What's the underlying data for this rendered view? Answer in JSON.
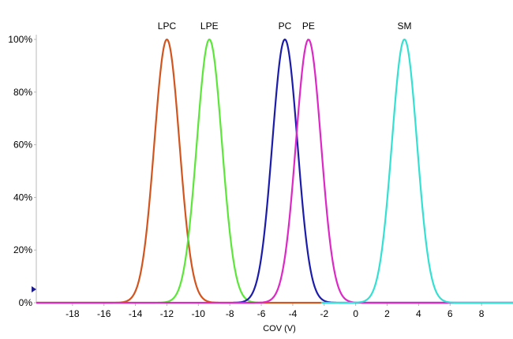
{
  "chart_data": {
    "type": "line",
    "title": "",
    "xlabel": "COV (V)",
    "ylabel": "",
    "xlim": [
      -20.3,
      10
    ],
    "ylim": [
      0,
      100
    ],
    "x_ticks": [
      -18,
      -16,
      -14,
      -12,
      -10,
      -8,
      -6,
      -4,
      -2,
      0,
      2,
      4,
      6,
      8
    ],
    "y_ticks": [
      0,
      20,
      40,
      60,
      80,
      100
    ],
    "y_tick_labels": [
      "0%",
      "20%",
      "40%",
      "60%",
      "80%",
      "100%"
    ],
    "grid": false,
    "legend": "none",
    "series": [
      {
        "name": "LPC",
        "type": "gaussian",
        "center": -12.0,
        "sigma": 0.8,
        "peak": 100,
        "x_range": [
          -20.3,
          -1.3
        ],
        "color": "#d2541e"
      },
      {
        "name": "LPE",
        "type": "gaussian",
        "center": -9.3,
        "sigma": 0.8,
        "peak": 100,
        "x_range": [
          -20.3,
          -6.2
        ],
        "color": "#5ce63a"
      },
      {
        "name": "PC",
        "type": "gaussian",
        "center": -4.5,
        "sigma": 0.8,
        "peak": 100,
        "x_range": [
          -7.8,
          10
        ],
        "color": "#1c1cac"
      },
      {
        "name": "PE",
        "type": "gaussian",
        "center": -3.0,
        "sigma": 0.8,
        "peak": 100,
        "x_range": [
          -20.3,
          10
        ],
        "color": "#dd28c6"
      },
      {
        "name": "SM",
        "type": "gaussian",
        "center": 3.1,
        "sigma": 0.8,
        "peak": 100,
        "x_range": [
          -2.2,
          10
        ],
        "color": "#34e0d2"
      }
    ]
  },
  "marker_icon": "arrow-right-icon"
}
